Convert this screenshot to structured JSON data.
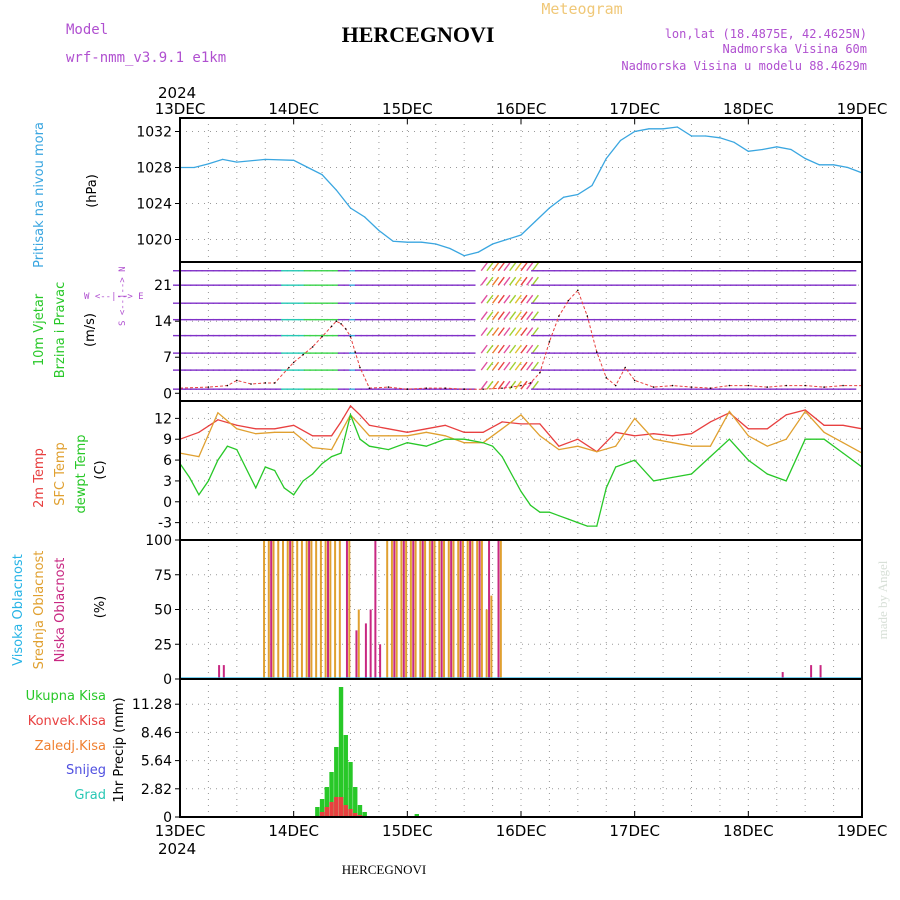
{
  "header": {
    "model_label": "Model",
    "model_name": "wrf-nmm_v3.9.1  e1km",
    "title": "HERCEGNOVI",
    "meteogram": "Meteogram",
    "lonlat": "lon,lat (18.4875E, 42.4625N)",
    "elevation": "Nadmorska Visina 60m",
    "model_elevation": "Nadmorska Visina u modelu 88.4629m"
  },
  "time_axis": {
    "year": "2024",
    "ticks": [
      "13DEC",
      "14DEC",
      "15DEC",
      "16DEC",
      "17DEC",
      "18DEC",
      "19DEC"
    ]
  },
  "footer": {
    "station": "HERCEGNOVI",
    "credit": "made by Angel"
  },
  "colors": {
    "pressure": "#3aa6e0",
    "t2m": "#e84040",
    "sfc": "#e0a030",
    "dewpt": "#28c828",
    "high_cloud": "#28b4e6",
    "mid_cloud": "#e0a030",
    "low_cloud": "#c82882",
    "total_precip": "#28c828",
    "conv_precip": "#e84040",
    "frozen_precip": "#f08030",
    "snow": "#5050e0",
    "hail": "#28c8b4",
    "header_purple": "#b050d0",
    "meteogram_orange": "#f0c878"
  },
  "chart_data": [
    {
      "type": "line",
      "panel": "pressure",
      "ylabel_main": "Pritisak na nivou mora",
      "ylabel_unit": "(hPa)",
      "yticks": [
        "1020",
        "1024",
        "1028",
        "1032"
      ],
      "ylim": [
        1017.5,
        1033.5
      ],
      "xlim": [
        0,
        144
      ],
      "grid": true,
      "series": [
        {
          "x": [
            0,
            3,
            6,
            9,
            12,
            18,
            24,
            27,
            30,
            33,
            36,
            39,
            42,
            45,
            48,
            51,
            54,
            57,
            60,
            63,
            66,
            69,
            72,
            75,
            78,
            81,
            84,
            87,
            90,
            93,
            96,
            99,
            102,
            105,
            108,
            111,
            114,
            117,
            120,
            123,
            126,
            129,
            132,
            135,
            138,
            141,
            144
          ],
          "values": [
            1028.0,
            1028.0,
            1028.4,
            1028.9,
            1028.6,
            1028.9,
            1028.8,
            1028.0,
            1027.2,
            1025.5,
            1023.5,
            1022.5,
            1021.0,
            1019.8,
            1019.7,
            1019.7,
            1019.5,
            1019.0,
            1018.2,
            1018.6,
            1019.5,
            1020.0,
            1020.5,
            1022.0,
            1023.5,
            1024.7,
            1025.0,
            1026.0,
            1029.0,
            1031.0,
            1032.0,
            1032.3,
            1032.3,
            1032.5,
            1031.5,
            1031.5,
            1031.3,
            1030.8,
            1029.8,
            1030.0,
            1030.3,
            1030.0,
            1029.0,
            1028.3,
            1028.3,
            1028.0,
            1027.4
          ]
        }
      ]
    },
    {
      "type": "line",
      "panel": "wind",
      "ylabel_main": "10m Vjetar",
      "ylabel_sub": "Brzina i Pravac",
      "ylabel_unit": "(m/s)",
      "compass": "W <--|--> E",
      "compass_ns": "S <--|--> N",
      "yticks": [
        "0",
        "7",
        "14",
        "21"
      ],
      "ylim": [
        -1.5,
        25.5
      ],
      "xlim": [
        0,
        144
      ],
      "grid": true,
      "series": [
        {
          "name": "speed",
          "x": [
            0,
            6,
            10,
            12,
            15,
            18,
            20,
            23,
            24,
            26,
            28,
            30,
            32,
            33,
            34,
            35,
            36,
            37,
            38,
            40,
            44,
            48,
            52,
            56,
            60,
            64,
            68,
            70,
            72,
            74,
            76,
            78,
            80,
            82,
            84,
            86,
            88,
            90,
            92,
            94,
            96,
            100,
            104,
            108,
            112,
            116,
            120,
            124,
            128,
            132,
            136,
            140,
            144
          ],
          "values": [
            1.0,
            1.2,
            1.5,
            2.5,
            1.8,
            2.0,
            2.0,
            5.0,
            6.0,
            7.5,
            9.0,
            11.0,
            13.0,
            14.0,
            13.5,
            12.5,
            11.0,
            8.0,
            5.0,
            1.0,
            1.2,
            0.8,
            1.0,
            1.0,
            0.8,
            0.8,
            1.0,
            1.2,
            1.5,
            2.0,
            4.0,
            10.0,
            15.0,
            18.0,
            20.0,
            15.0,
            8.0,
            3.0,
            1.5,
            5.0,
            2.5,
            1.2,
            1.5,
            1.2,
            1.0,
            1.5,
            1.5,
            1.2,
            1.5,
            1.5,
            1.2,
            1.5,
            1.5
          ]
        }
      ]
    },
    {
      "type": "line",
      "panel": "temperature",
      "ylabel_t2m": "2m Temp",
      "ylabel_sfc": "SFC Temp",
      "ylabel_dew": "dewpt Temp",
      "ylabel_unit": "(C)",
      "yticks": [
        "-3",
        "0",
        "3",
        "6",
        "9",
        "12"
      ],
      "ylim": [
        -5.5,
        14.5
      ],
      "xlim": [
        0,
        144
      ],
      "grid": true,
      "series": [
        {
          "name": "2m Temp",
          "x": [
            0,
            4,
            8,
            12,
            16,
            20,
            24,
            28,
            32,
            34,
            36,
            38,
            40,
            44,
            48,
            52,
            56,
            60,
            64,
            68,
            72,
            76,
            80,
            84,
            88,
            92,
            96,
            100,
            104,
            108,
            112,
            116,
            120,
            124,
            128,
            132,
            136,
            140,
            144
          ],
          "values": [
            9.0,
            10.0,
            11.8,
            11.0,
            10.5,
            10.5,
            11.0,
            9.5,
            9.5,
            11.5,
            13.8,
            12.5,
            11.0,
            10.5,
            10.0,
            10.5,
            11.0,
            10.0,
            10.0,
            11.5,
            11.2,
            11.2,
            8.0,
            9.0,
            7.2,
            10.0,
            9.5,
            9.8,
            9.5,
            9.8,
            11.5,
            12.8,
            10.5,
            10.5,
            12.5,
            13.2,
            11.0,
            11.0,
            10.5
          ]
        },
        {
          "name": "SFC Temp",
          "x": [
            0,
            4,
            8,
            12,
            16,
            20,
            24,
            28,
            32,
            34,
            36,
            38,
            40,
            44,
            48,
            52,
            56,
            60,
            64,
            68,
            72,
            76,
            80,
            84,
            88,
            92,
            96,
            100,
            104,
            108,
            112,
            116,
            120,
            124,
            128,
            132,
            136,
            140,
            144
          ],
          "values": [
            7.0,
            6.5,
            12.8,
            10.5,
            9.8,
            10.0,
            10.0,
            7.8,
            7.5,
            10.0,
            12.5,
            11.0,
            9.5,
            9.5,
            9.5,
            10.0,
            9.5,
            8.5,
            8.5,
            10.5,
            12.5,
            9.5,
            7.5,
            8.0,
            7.2,
            8.0,
            12.0,
            9.0,
            8.5,
            8.0,
            8.0,
            13.0,
            9.5,
            8.0,
            9.0,
            13.0,
            10.0,
            8.5,
            7.0
          ]
        },
        {
          "name": "dewpt Temp",
          "x": [
            0,
            2,
            4,
            6,
            8,
            10,
            12,
            16,
            18,
            20,
            22,
            24,
            26,
            28,
            30,
            32,
            34,
            36,
            38,
            40,
            44,
            48,
            52,
            56,
            60,
            64,
            66,
            68,
            70,
            72,
            74,
            76,
            78,
            80,
            82,
            84,
            86,
            88,
            90,
            92,
            96,
            100,
            104,
            108,
            112,
            116,
            120,
            124,
            128,
            132,
            136,
            140,
            144
          ],
          "values": [
            5.5,
            3.5,
            1.0,
            3.0,
            6.0,
            8.0,
            7.5,
            2.0,
            5.0,
            4.5,
            2.0,
            1.0,
            3.0,
            4.0,
            5.5,
            6.5,
            7.0,
            12.5,
            9.0,
            8.0,
            7.5,
            8.5,
            8.0,
            9.0,
            9.0,
            8.5,
            8.0,
            6.5,
            4.0,
            1.5,
            -0.5,
            -1.5,
            -1.5,
            -2.0,
            -2.5,
            -3.0,
            -3.5,
            -3.5,
            2.0,
            5.0,
            6.0,
            3.0,
            3.5,
            4.0,
            6.5,
            9.0,
            6.0,
            4.0,
            3.0,
            9.0,
            9.0,
            7.0,
            5.0
          ]
        }
      ]
    },
    {
      "type": "bar",
      "panel": "clouds",
      "ylabel_high": "Visoka Oblacnost",
      "ylabel_mid": "Srednja Oblacnost",
      "ylabel_low": "Niska Oblacnost",
      "ylabel_unit": "(%)",
      "yticks": [
        "0",
        "25",
        "50",
        "75",
        "100"
      ],
      "ylim": [
        0,
        100
      ],
      "xlim": [
        0,
        144
      ],
      "grid": true,
      "series": [
        {
          "name": "Srednja Oblacnost",
          "x": [
            18,
            19,
            20,
            21,
            22,
            23,
            24,
            25,
            26,
            27,
            28,
            29,
            30,
            31,
            32,
            33,
            34,
            36,
            38,
            44,
            45,
            46,
            47,
            48,
            49,
            50,
            51,
            52,
            53,
            54,
            55,
            56,
            57,
            58,
            59,
            60,
            61,
            62,
            63,
            64,
            65,
            66,
            68
          ],
          "values": [
            100,
            100,
            100,
            100,
            100,
            100,
            100,
            100,
            100,
            100,
            100,
            100,
            100,
            100,
            100,
            100,
            100,
            100,
            50,
            100,
            100,
            100,
            100,
            100,
            100,
            100,
            100,
            100,
            100,
            100,
            100,
            100,
            100,
            100,
            100,
            100,
            100,
            100,
            100,
            100,
            50,
            60,
            100
          ]
        },
        {
          "name": "Niska Oblacnost",
          "x": [
            8,
            9,
            19,
            23,
            27,
            31,
            35,
            37,
            39,
            40,
            41,
            42,
            45,
            47,
            49,
            51,
            53,
            55,
            57,
            59,
            61,
            63,
            65,
            67,
            127,
            133,
            135
          ],
          "values": [
            10,
            10,
            100,
            100,
            100,
            100,
            100,
            35,
            40,
            50,
            100,
            25,
            100,
            100,
            100,
            100,
            100,
            100,
            100,
            100,
            100,
            100,
            100,
            100,
            5,
            10,
            10
          ]
        }
      ]
    },
    {
      "type": "bar",
      "panel": "precip",
      "legend": [
        "Ukupna Kisa",
        "Konvek.Kisa",
        "Zaledj.Kisa",
        "Snijeg",
        "Grad"
      ],
      "ylabel_unit": "1hr Precip (mm)",
      "yticks": [
        "0",
        "2.82",
        "5.64",
        "8.46",
        "11.28"
      ],
      "ylim": [
        0,
        13.8
      ],
      "xlim": [
        0,
        144
      ],
      "grid": true,
      "series": [
        {
          "name": "Ukupna Kisa",
          "x": [
            29,
            30,
            31,
            32,
            33,
            34,
            35,
            36,
            37,
            38,
            39,
            44,
            50,
            51
          ],
          "values": [
            1.0,
            1.8,
            3.0,
            4.5,
            7.0,
            13.0,
            8.2,
            5.5,
            3.0,
            1.2,
            0.5,
            0.1,
            0.3,
            0.1
          ]
        },
        {
          "name": "Konvek.Kisa",
          "x": [
            30,
            31,
            32,
            33,
            34,
            35,
            36,
            37,
            38
          ],
          "values": [
            0.5,
            1.0,
            1.5,
            2.0,
            2.0,
            1.2,
            0.8,
            0.4,
            0.2
          ]
        }
      ]
    }
  ]
}
